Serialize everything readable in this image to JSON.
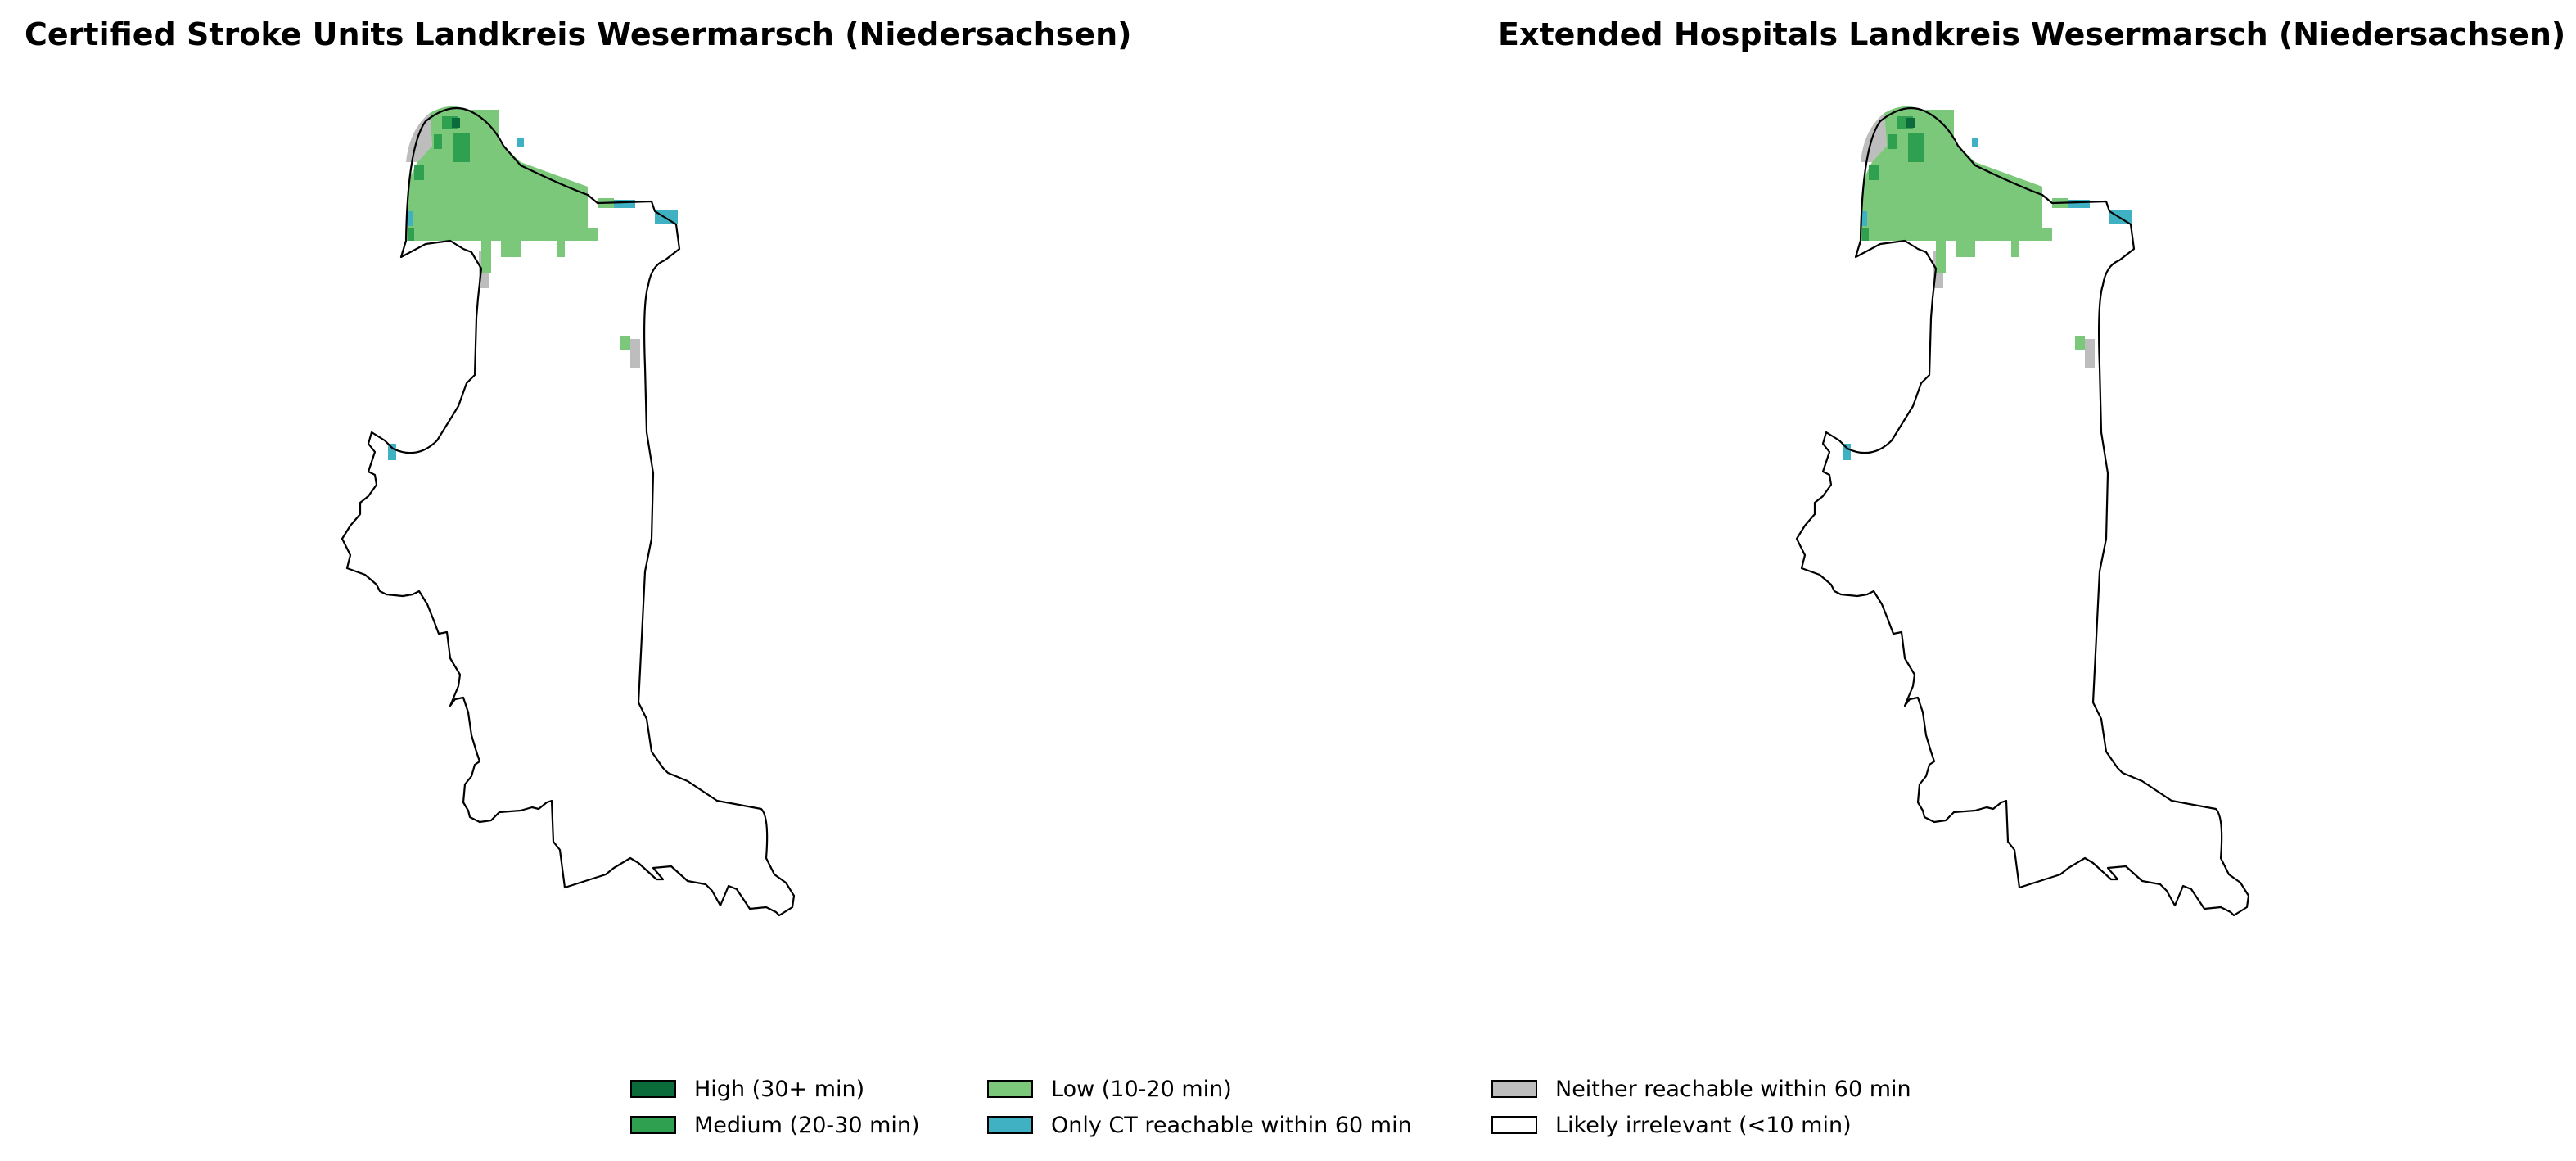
{
  "maps": [
    {
      "title": "Certified Stroke Units Landkreis Wesermarsch (Niedersachsen)"
    },
    {
      "title": "Extended Hospitals Landkreis Wesermarsch (Niedersachsen)"
    }
  ],
  "legend": {
    "items": [
      {
        "label": "High (30+ min)",
        "color": "#0b6b3a"
      },
      {
        "label": "Medium (20-30 min)",
        "color": "#2ea050"
      },
      {
        "label": "Low (10-20 min)",
        "color": "#7bc87b"
      },
      {
        "label": "Only CT reachable within 60 min",
        "color": "#3fb1c3"
      },
      {
        "label": "Neither reachable within 60 min",
        "color": "#bdbdbd"
      },
      {
        "label": "Likely irrelevant (<10 min)",
        "color": "#ffffff"
      }
    ]
  }
}
